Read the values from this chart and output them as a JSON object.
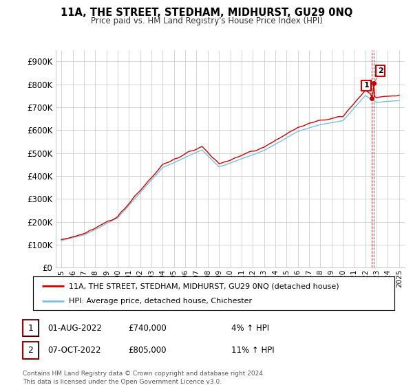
{
  "title": "11A, THE STREET, STEDHAM, MIDHURST, GU29 0NQ",
  "subtitle": "Price paid vs. HM Land Registry's House Price Index (HPI)",
  "ylim": [
    0,
    950000
  ],
  "yticks": [
    0,
    100000,
    200000,
    300000,
    400000,
    500000,
    600000,
    700000,
    800000,
    900000
  ],
  "ytick_labels": [
    "£0",
    "£100K",
    "£200K",
    "£300K",
    "£400K",
    "£500K",
    "£600K",
    "£700K",
    "£800K",
    "£900K"
  ],
  "hpi_color": "#7bbfdf",
  "price_color": "#cc0000",
  "background_color": "#ffffff",
  "grid_color": "#cccccc",
  "legend_label_price": "11A, THE STREET, STEDHAM, MIDHURST, GU29 0NQ (detached house)",
  "legend_label_hpi": "HPI: Average price, detached house, Chichester",
  "transaction1_date": "01-AUG-2022",
  "transaction1_price": "£740,000",
  "transaction1_hpi": "4% ↑ HPI",
  "transaction2_date": "07-OCT-2022",
  "transaction2_price": "£805,000",
  "transaction2_hpi": "11% ↑ HPI",
  "footer": "Contains HM Land Registry data © Crown copyright and database right 2024.\nThis data is licensed under the Open Government Licence v3.0.",
  "x_start_year": 1995,
  "x_end_year": 2025
}
